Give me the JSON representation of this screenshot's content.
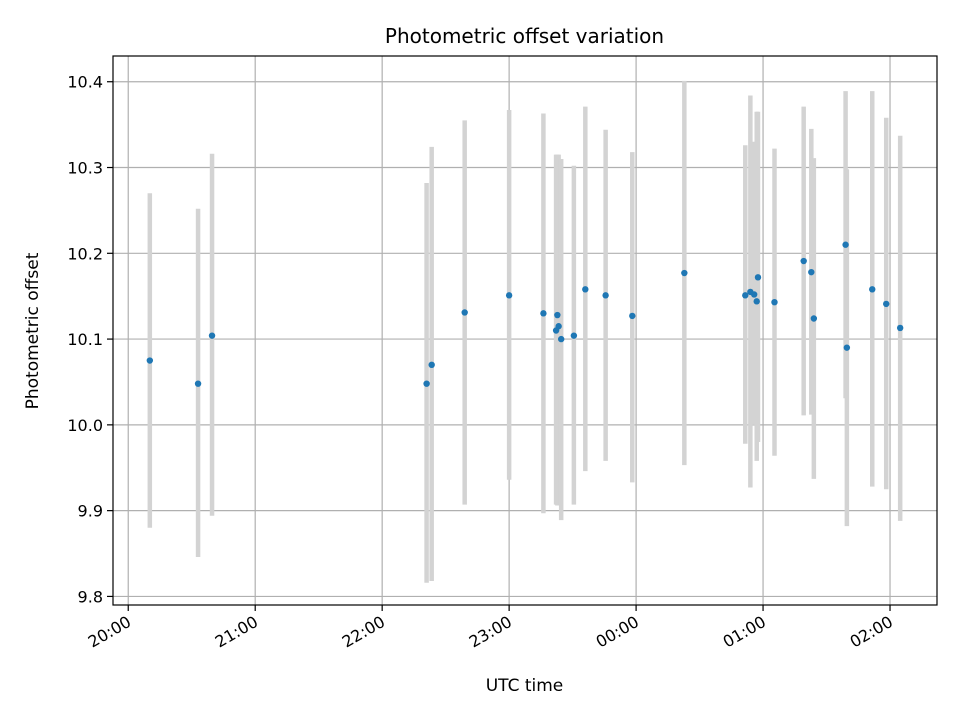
{
  "chart_data": {
    "type": "scatter",
    "title": "Photometric offset variation",
    "xlabel": "UTC time",
    "ylabel": "Photometric offset",
    "x_unit": "hours since 20:00 UTC",
    "xlim": [
      -0.12,
      6.37
    ],
    "ylim": [
      9.79,
      10.43
    ],
    "grid": true,
    "legend": "none",
    "x_ticks": [
      {
        "value": 0,
        "label": "20:00"
      },
      {
        "value": 1,
        "label": "21:00"
      },
      {
        "value": 2,
        "label": "22:00"
      },
      {
        "value": 3,
        "label": "23:00"
      },
      {
        "value": 4,
        "label": "00:00"
      },
      {
        "value": 5,
        "label": "01:00"
      },
      {
        "value": 6,
        "label": "02:00"
      }
    ],
    "y_ticks": [
      {
        "value": 9.8,
        "label": "9.8"
      },
      {
        "value": 9.9,
        "label": "9.9"
      },
      {
        "value": 10.0,
        "label": "10.0"
      },
      {
        "value": 10.1,
        "label": "10.1"
      },
      {
        "value": 10.2,
        "label": "10.2"
      },
      {
        "value": 10.3,
        "label": "10.3"
      },
      {
        "value": 10.4,
        "label": "10.4"
      }
    ],
    "colors": {
      "marker": "#1f77b4",
      "errorbar": "#d3d3d3",
      "grid": "#b0b0b0"
    },
    "points": [
      {
        "x": 0.17,
        "y": 10.075,
        "ylo": 9.88,
        "yhi": 10.27
      },
      {
        "x": 0.55,
        "y": 10.048,
        "ylo": 9.846,
        "yhi": 10.252
      },
      {
        "x": 0.66,
        "y": 10.104,
        "ylo": 9.894,
        "yhi": 10.316
      },
      {
        "x": 2.35,
        "y": 10.048,
        "ylo": 9.816,
        "yhi": 10.282
      },
      {
        "x": 2.39,
        "y": 10.07,
        "ylo": 9.818,
        "yhi": 10.324
      },
      {
        "x": 2.65,
        "y": 10.131,
        "ylo": 9.907,
        "yhi": 10.355
      },
      {
        "x": 3.0,
        "y": 10.151,
        "ylo": 9.936,
        "yhi": 10.367
      },
      {
        "x": 3.27,
        "y": 10.13,
        "ylo": 9.897,
        "yhi": 10.363
      },
      {
        "x": 3.37,
        "y": 10.11,
        "ylo": 9.907,
        "yhi": 10.315
      },
      {
        "x": 3.38,
        "y": 10.128,
        "ylo": 9.906,
        "yhi": 10.315
      },
      {
        "x": 3.39,
        "y": 10.115,
        "ylo": 9.91,
        "yhi": 10.315
      },
      {
        "x": 3.41,
        "y": 10.1,
        "ylo": 9.889,
        "yhi": 10.31
      },
      {
        "x": 3.51,
        "y": 10.104,
        "ylo": 9.907,
        "yhi": 10.302
      },
      {
        "x": 3.6,
        "y": 10.158,
        "ylo": 9.946,
        "yhi": 10.371
      },
      {
        "x": 3.76,
        "y": 10.151,
        "ylo": 9.958,
        "yhi": 10.344
      },
      {
        "x": 3.97,
        "y": 10.127,
        "ylo": 9.933,
        "yhi": 10.318
      },
      {
        "x": 4.38,
        "y": 10.177,
        "ylo": 9.953,
        "yhi": 10.401
      },
      {
        "x": 4.86,
        "y": 10.151,
        "ylo": 9.978,
        "yhi": 10.326
      },
      {
        "x": 4.9,
        "y": 10.155,
        "ylo": 9.927,
        "yhi": 10.384
      },
      {
        "x": 4.93,
        "y": 10.152,
        "ylo": 10.0,
        "yhi": 10.33
      },
      {
        "x": 4.95,
        "y": 10.144,
        "ylo": 9.958,
        "yhi": 10.365
      },
      {
        "x": 4.96,
        "y": 10.172,
        "ylo": 9.98,
        "yhi": 10.365
      },
      {
        "x": 5.09,
        "y": 10.143,
        "ylo": 9.964,
        "yhi": 10.322
      },
      {
        "x": 5.32,
        "y": 10.191,
        "ylo": 10.011,
        "yhi": 10.371
      },
      {
        "x": 5.38,
        "y": 10.178,
        "ylo": 10.012,
        "yhi": 10.345
      },
      {
        "x": 5.4,
        "y": 10.124,
        "ylo": 9.937,
        "yhi": 10.311
      },
      {
        "x": 5.65,
        "y": 10.21,
        "ylo": 10.031,
        "yhi": 10.389
      },
      {
        "x": 5.66,
        "y": 10.09,
        "ylo": 9.882,
        "yhi": 10.298
      },
      {
        "x": 5.86,
        "y": 10.158,
        "ylo": 9.928,
        "yhi": 10.389
      },
      {
        "x": 5.97,
        "y": 10.141,
        "ylo": 9.925,
        "yhi": 10.358
      },
      {
        "x": 6.08,
        "y": 10.113,
        "ylo": 9.888,
        "yhi": 10.337
      }
    ]
  }
}
